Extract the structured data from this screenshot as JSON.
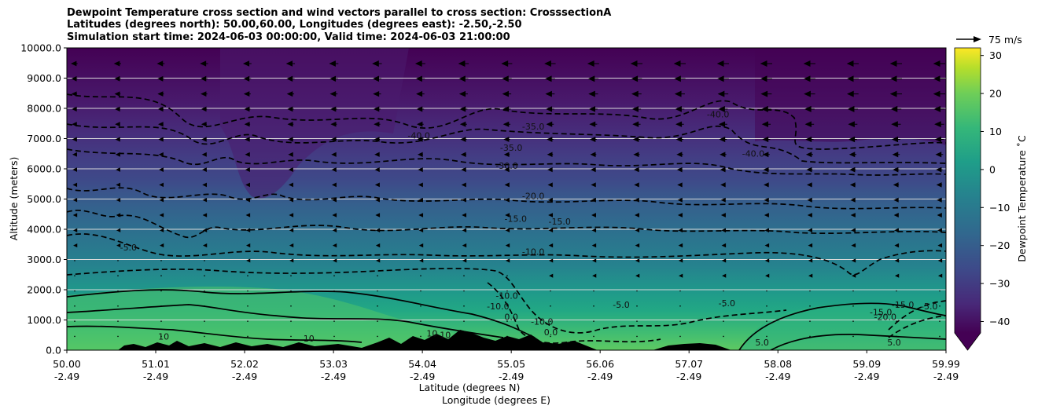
{
  "title_lines": [
    "Dewpoint Temperature cross section and wind vectors parallel to cross section: CrosssectionA",
    "Latitudes (degrees north): 50.00,60.00, Longitudes (degrees east): -2.50,-2.50",
    "Simulation start time: 2024-06-03 00:00:00, Valid time: 2024-06-03 21:00:00"
  ],
  "chart_data": {
    "type": "heatmap",
    "xlabel_lat": "Latitude (degrees N)",
    "xlabel_lon": "Longitude (degrees E)",
    "ylabel": "Altitude (meters)",
    "xlim": [
      50.0,
      59.99
    ],
    "ylim": [
      0,
      10000
    ],
    "x_ticks": [
      {
        "lat": "50.00",
        "lon": "-2.49",
        "value": 50.0
      },
      {
        "lat": "51.01",
        "lon": "-2.49",
        "value": 51.01
      },
      {
        "lat": "52.02",
        "lon": "-2.49",
        "value": 52.02
      },
      {
        "lat": "53.03",
        "lon": "-2.49",
        "value": 53.03
      },
      {
        "lat": "54.04",
        "lon": "-2.49",
        "value": 54.04
      },
      {
        "lat": "55.05",
        "lon": "-2.49",
        "value": 55.05
      },
      {
        "lat": "56.06",
        "lon": "-2.49",
        "value": 56.06
      },
      {
        "lat": "57.07",
        "lon": "-2.49",
        "value": 57.07
      },
      {
        "lat": "58.08",
        "lon": "-2.49",
        "value": 58.08
      },
      {
        "lat": "59.09",
        "lon": "-2.49",
        "value": 59.09
      },
      {
        "lat": "59.99",
        "lon": "-2.49",
        "value": 59.99
      }
    ],
    "y_ticks": [
      "0.0",
      "1000.0",
      "2000.0",
      "3000.0",
      "4000.0",
      "5000.0",
      "6000.0",
      "7000.0",
      "8000.0",
      "9000.0",
      "10000.0"
    ],
    "grid": "horizontal",
    "colorbar": {
      "label": "Dewpoint Temperature ˚C",
      "range": [
        -43,
        32
      ],
      "ticks": [
        "30",
        "20",
        "10",
        "0",
        "−10",
        "−20",
        "−30",
        "−40"
      ],
      "tick_values": [
        30,
        20,
        10,
        0,
        -10,
        -20,
        -30,
        -40
      ],
      "extend": "min"
    },
    "quiver_key": "75 m/s",
    "contour_labels": [
      {
        "text": "-35.0",
        "x": 55.3,
        "y": 7300
      },
      {
        "text": "-40.0",
        "x": 54.0,
        "y": 7000
      },
      {
        "text": "-40.0",
        "x": 57.4,
        "y": 7700
      },
      {
        "text": "-40.0",
        "x": 57.8,
        "y": 6400
      },
      {
        "text": "-35.0",
        "x": 55.05,
        "y": 6600
      },
      {
        "text": "-30.0",
        "x": 55.0,
        "y": 6000
      },
      {
        "text": "-20.0",
        "x": 55.3,
        "y": 5000
      },
      {
        "text": "-15.0",
        "x": 55.1,
        "y": 4250
      },
      {
        "text": "-15.0",
        "x": 55.6,
        "y": 4150
      },
      {
        "text": "-10.0",
        "x": 55.3,
        "y": 3150
      },
      {
        "text": "-5.0",
        "x": 50.7,
        "y": 3300
      },
      {
        "text": "-10.0",
        "x": 55.0,
        "y": 1700
      },
      {
        "text": "-10.0",
        "x": 54.9,
        "y": 1350
      },
      {
        "text": "0.0",
        "x": 55.05,
        "y": 1000
      },
      {
        "text": "-10.0",
        "x": 55.4,
        "y": 850
      },
      {
        "text": "0.0",
        "x": 55.5,
        "y": 500
      },
      {
        "text": "-5.0",
        "x": 56.3,
        "y": 1400
      },
      {
        "text": "-5.0",
        "x": 57.5,
        "y": 1450
      },
      {
        "text": "-15.0",
        "x": 59.5,
        "y": 1400
      },
      {
        "text": "-20.0",
        "x": 59.3,
        "y": 1000
      },
      {
        "text": "-15.0",
        "x": 59.25,
        "y": 1150
      },
      {
        "text": "-5.0",
        "x": 59.8,
        "y": 1350
      },
      {
        "text": "10",
        "x": 51.1,
        "y": 350
      },
      {
        "text": "10",
        "x": 52.75,
        "y": 280
      },
      {
        "text": "10",
        "x": 54.15,
        "y": 450
      },
      {
        "text": "10",
        "x": 54.3,
        "y": 400
      },
      {
        "text": "5.0",
        "x": 57.9,
        "y": 150
      },
      {
        "text": "5.0",
        "x": 59.4,
        "y": 150
      }
    ]
  }
}
